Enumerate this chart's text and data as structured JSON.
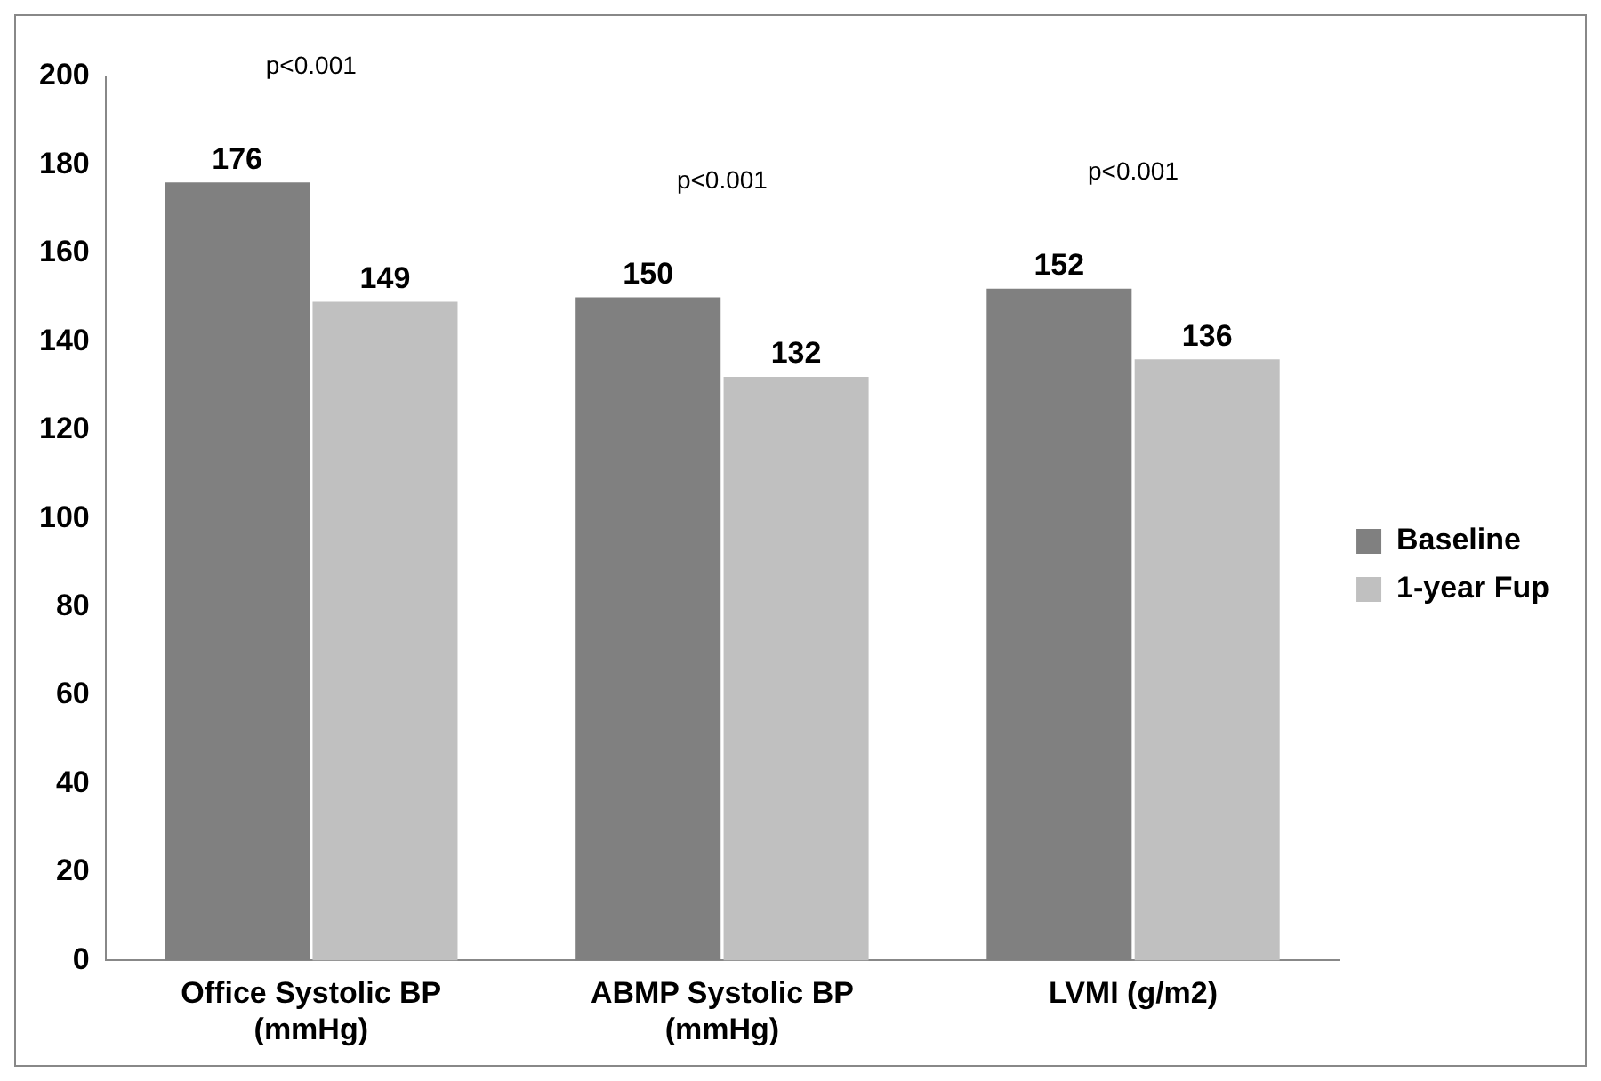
{
  "chart_data": {
    "type": "bar",
    "categories": [
      "Office Systolic BP (mmHg)",
      "ABMP Systolic BP (mmHg)",
      "LVMI (g/m2)"
    ],
    "series": [
      {
        "name": "Baseline",
        "color": "#808080",
        "values": [
          176,
          150,
          152
        ]
      },
      {
        "name": "1-year Fup",
        "color": "#c0c0c0",
        "values": [
          149,
          132,
          136
        ]
      }
    ],
    "ylim": [
      0,
      200
    ],
    "yticks": [
      0,
      20,
      40,
      60,
      80,
      100,
      120,
      140,
      160,
      180,
      200
    ],
    "grid": false,
    "legend": "right",
    "data_labels": true,
    "annotations": [
      "p<0.001",
      "p<0.001",
      "p<0.001"
    ]
  }
}
